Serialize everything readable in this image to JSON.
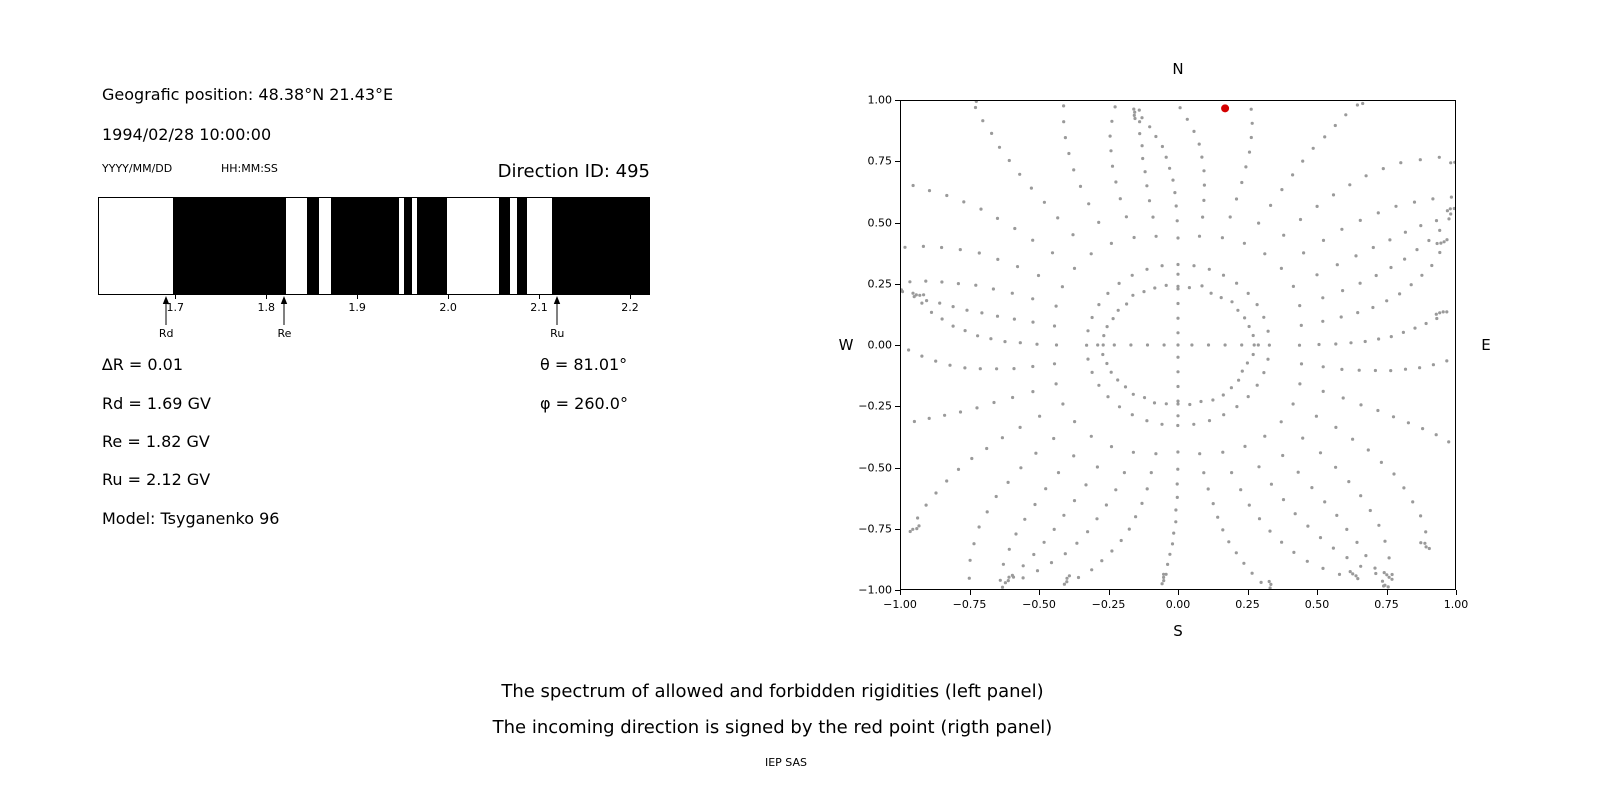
{
  "left_panel": {
    "geographic_position": "Geografic position: 48.38°N 21.43°E",
    "datetime": "1994/02/28 10:00:00",
    "date_format": "YYYY/MM/DD",
    "time_format": "HH:MM:SS",
    "direction_id": "Direction ID: 495",
    "params": [
      "∆R = 0.01",
      "Rd = 1.69 GV",
      "Re = 1.82 GV",
      "Ru = 2.12 GV",
      "Model: Tsyganenko 96"
    ],
    "angles": [
      "θ = 81.01°",
      "φ = 260.0°"
    ]
  },
  "chart_data": [
    {
      "type": "bar",
      "name": "rigidity-spectrum",
      "description": "Barcode-style spectrum of allowed (white) and forbidden (black) rigidities in GV",
      "xlim": [
        1.615,
        2.222
      ],
      "ticks": [
        1.7,
        1.8,
        1.9,
        2.0,
        2.1,
        2.2
      ],
      "tick_labels": [
        "1.7",
        "1.8",
        "1.9",
        "2.0",
        "2.1",
        "2.2"
      ],
      "band_color": "#000000",
      "forbidden_bands": [
        [
          1.697,
          1.821
        ],
        [
          1.845,
          1.858
        ],
        [
          1.871,
          1.946
        ],
        [
          1.952,
          1.96
        ],
        [
          1.966,
          1.999
        ],
        [
          2.057,
          2.069
        ],
        [
          2.076,
          2.087
        ],
        [
          2.115,
          2.222
        ]
      ],
      "markers": [
        {
          "label": "Rd",
          "value": 1.69
        },
        {
          "label": "Re",
          "value": 1.82
        },
        {
          "label": "Ru",
          "value": 2.12
        }
      ]
    },
    {
      "type": "scatter",
      "name": "incoming-direction-map",
      "xlim": [
        -1,
        1
      ],
      "ylim": [
        -1,
        1
      ],
      "xticks": [
        -1.0,
        -0.75,
        -0.5,
        -0.25,
        0.0,
        0.25,
        0.5,
        0.75,
        1.0
      ],
      "yticks": [
        -1.0,
        -0.75,
        -0.5,
        -0.25,
        0.0,
        0.25,
        0.5,
        0.75,
        1.0
      ],
      "compass": {
        "top": "N",
        "bottom": "S",
        "left": "W",
        "right": "E"
      },
      "dot_color": "#9a9a9a",
      "red_point": {
        "x": 0.17,
        "y": 0.97,
        "color": "#d40000"
      },
      "pattern": {
        "rays": 36,
        "ray_r_start": 0.33,
        "dots_per_ray": 13,
        "end_cluster_dots": 3,
        "inner_ring_rx": 0.27,
        "inner_ring_ry": 0.245,
        "inner_ring_dots": 40,
        "cardinal_cross_radii": [
          0.05,
          0.11,
          0.17,
          0.23,
          0.29
        ],
        "center_dot": true
      }
    }
  ],
  "caption": {
    "line1": "The spectrum of allowed and forbidden rigidities (left panel)",
    "line2": "The incoming direction is signed by the red point (rigth panel)",
    "credit": "IEP SAS"
  }
}
